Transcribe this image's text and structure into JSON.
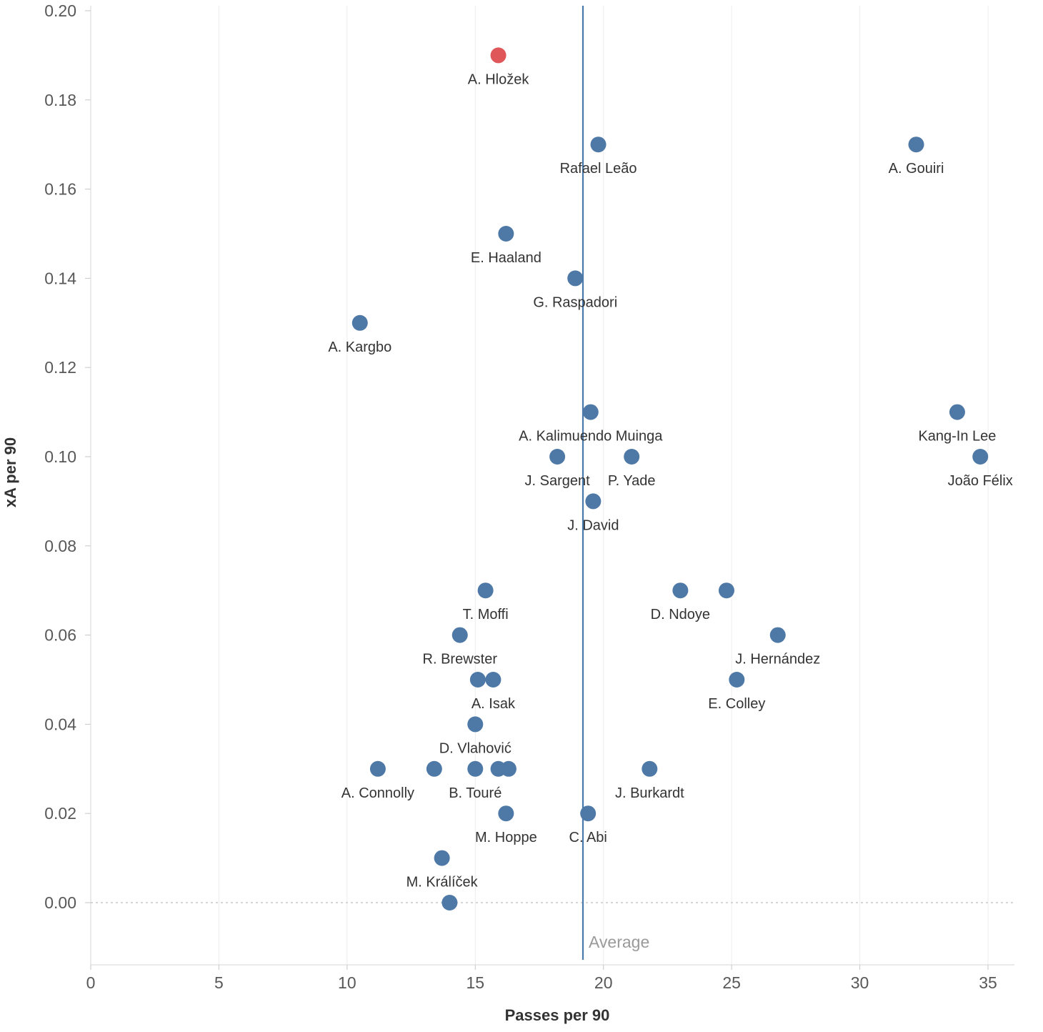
{
  "chart_data": {
    "type": "scatter",
    "title": "",
    "xlabel": "Passes per 90",
    "ylabel": "xA per 90",
    "xlim": [
      0,
      35
    ],
    "ylim": [
      0.0,
      0.2
    ],
    "grid": "vertical",
    "legend": "none",
    "x_tick_values": [
      0,
      5,
      10,
      15,
      20,
      25,
      30,
      35
    ],
    "x_tick_labels": [
      "0",
      "5",
      "10",
      "15",
      "20",
      "25",
      "30",
      "35"
    ],
    "y_tick_values": [
      0.0,
      0.02,
      0.04,
      0.06,
      0.08,
      0.1,
      0.12,
      0.14,
      0.16,
      0.18,
      0.2
    ],
    "y_tick_labels": [
      "0.00",
      "0.02",
      "0.04",
      "0.06",
      "0.08",
      "0.10",
      "0.12",
      "0.14",
      "0.16",
      "0.18",
      "0.20"
    ],
    "zero_line": {
      "y": 0,
      "style": "dashed"
    },
    "average_line": {
      "x": 19.2,
      "label": "Average"
    },
    "colors": {
      "point": "#4e79a7",
      "highlight": "#e05759",
      "average_line": "#4a7aab"
    },
    "points": [
      {
        "label": "A. Hložek",
        "x": 15.9,
        "y": 0.19,
        "highlight": true
      },
      {
        "label": "Rafael Leão",
        "x": 19.8,
        "y": 0.17
      },
      {
        "label": "A. Gouiri",
        "x": 32.2,
        "y": 0.17
      },
      {
        "label": "E. Haaland",
        "x": 16.2,
        "y": 0.15
      },
      {
        "label": "G. Raspadori",
        "x": 18.9,
        "y": 0.14
      },
      {
        "label": "A. Kargbo",
        "x": 10.5,
        "y": 0.13
      },
      {
        "label": "A. Kalimuendo Muinga",
        "x": 19.5,
        "y": 0.11
      },
      {
        "label": "Kang-In Lee",
        "x": 33.8,
        "y": 0.11
      },
      {
        "label": "J. Sargent",
        "x": 18.2,
        "y": 0.1
      },
      {
        "label": "P. Yade",
        "x": 21.1,
        "y": 0.1
      },
      {
        "label": "João Félix",
        "x": 34.7,
        "y": 0.1
      },
      {
        "label": "J. David",
        "x": 19.6,
        "y": 0.09
      },
      {
        "label": "T. Moffi",
        "x": 15.4,
        "y": 0.07
      },
      {
        "label": "D. Ndoye",
        "x": 23.0,
        "y": 0.07
      },
      {
        "label": "",
        "x": 24.8,
        "y": 0.07
      },
      {
        "label": "R. Brewster",
        "x": 14.4,
        "y": 0.06
      },
      {
        "label": "J. Hernández",
        "x": 26.8,
        "y": 0.06
      },
      {
        "label": "",
        "x": 15.1,
        "y": 0.05
      },
      {
        "label": "A. Isak",
        "x": 15.7,
        "y": 0.05
      },
      {
        "label": "E. Colley",
        "x": 25.2,
        "y": 0.05
      },
      {
        "label": "D. Vlahović",
        "x": 15.0,
        "y": 0.04
      },
      {
        "label": "A. Connolly",
        "x": 11.2,
        "y": 0.03
      },
      {
        "label": "",
        "x": 13.4,
        "y": 0.03
      },
      {
        "label": "B. Touré",
        "x": 15.0,
        "y": 0.03
      },
      {
        "label": "",
        "x": 15.9,
        "y": 0.03
      },
      {
        "label": "",
        "x": 16.3,
        "y": 0.03
      },
      {
        "label": "J. Burkardt",
        "x": 21.8,
        "y": 0.03
      },
      {
        "label": "M. Hoppe",
        "x": 16.2,
        "y": 0.02
      },
      {
        "label": "C. Abi",
        "x": 19.4,
        "y": 0.02
      },
      {
        "label": "M. Králíček",
        "x": 13.7,
        "y": 0.01
      },
      {
        "label": "",
        "x": 14.0,
        "y": 0.0
      }
    ]
  }
}
